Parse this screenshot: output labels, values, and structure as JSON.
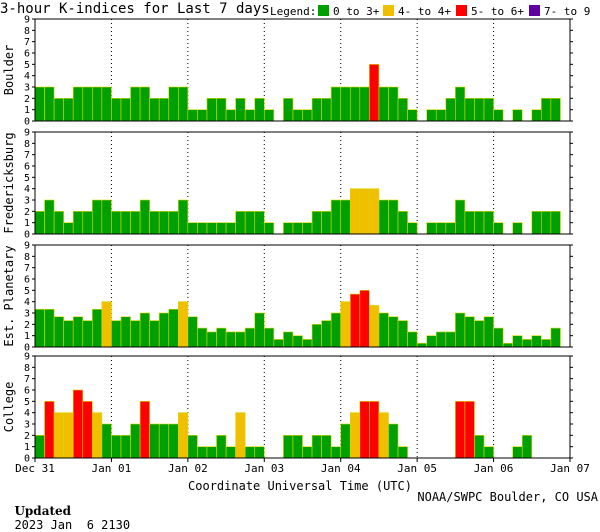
{
  "title": "3-hour K-indices for Last 7 days",
  "legend": {
    "label": "Legend:",
    "items": [
      {
        "label": "0 to 3+",
        "color": "#00a000"
      },
      {
        "label": "4- to 4+",
        "color": "#f0c000"
      },
      {
        "label": "5- to 6+",
        "color": "#ff0000"
      },
      {
        "label": "7- to 9",
        "color": "#6000a0"
      }
    ]
  },
  "footer": {
    "updated_label": "Updated",
    "updated_value": "2023 Jan  6 2130",
    "source": "NOAA/SWPC Boulder, CO USA"
  },
  "chart_data": {
    "type": "bar",
    "xlabel": "Coordinate Universal Time (UTC)",
    "x_ticks": [
      "Dec 31",
      "Jan 01",
      "Jan 02",
      "Jan 03",
      "Jan 04",
      "Jan 05",
      "Jan 06",
      "Jan 07"
    ],
    "y_ticks": [
      "0",
      "1",
      "2",
      "3",
      "4",
      "5",
      "6",
      "7",
      "8",
      "9"
    ],
    "ylim": [
      0,
      9
    ],
    "bins_per_day": 8,
    "grid": true,
    "colors": {
      "quiet": "#00a000",
      "active": "#f0c000",
      "storm": "#ff0000",
      "severe": "#6000a0"
    },
    "panels": [
      {
        "ylabel": "Boulder",
        "values": [
          3,
          3,
          2,
          2,
          3,
          3,
          3,
          3,
          2,
          2,
          3,
          3,
          2,
          2,
          3,
          3,
          1,
          1,
          2,
          2,
          1,
          2,
          1,
          2,
          1,
          0,
          2,
          1,
          1,
          2,
          2,
          3,
          3,
          3,
          3,
          5,
          3,
          3,
          2,
          1,
          0,
          1,
          1,
          2,
          3,
          2,
          2,
          2,
          1,
          0,
          1,
          0,
          1,
          2,
          2,
          0
        ]
      },
      {
        "ylabel": "Fredericksburg",
        "values": [
          2,
          3,
          2,
          1,
          2,
          2,
          3,
          3,
          2,
          2,
          2,
          3,
          2,
          2,
          2,
          3,
          1,
          1,
          1,
          1,
          1,
          2,
          2,
          2,
          1,
          0,
          1,
          1,
          1,
          2,
          2,
          3,
          3,
          4,
          4,
          4,
          3,
          3,
          2,
          1,
          0,
          1,
          1,
          1,
          3,
          2,
          2,
          2,
          1,
          0,
          1,
          0,
          2,
          2,
          2,
          0
        ]
      },
      {
        "ylabel": "Est. Planetary",
        "values": [
          3.33,
          3.33,
          2.67,
          2.33,
          2.67,
          2.33,
          3.33,
          4,
          2.33,
          2.67,
          2.33,
          3,
          2.33,
          3,
          3.33,
          4,
          2.67,
          1.67,
          1.33,
          1.67,
          1.33,
          1.33,
          1.67,
          3,
          1.67,
          0.67,
          1.33,
          1,
          0.67,
          2,
          2.33,
          3,
          4,
          4.67,
          5,
          3.67,
          3,
          2.67,
          2.33,
          1.33,
          0.33,
          1,
          1.33,
          1.33,
          3,
          2.67,
          2.33,
          2.67,
          1.67,
          0.33,
          1,
          0.67,
          1,
          0.67,
          1.67,
          0
        ]
      },
      {
        "ylabel": "College",
        "values": [
          2,
          5,
          4,
          4,
          6,
          5,
          4,
          3,
          2,
          2,
          3,
          5,
          3,
          3,
          3,
          4,
          2,
          1,
          1,
          2,
          1,
          4,
          1,
          1,
          0,
          0,
          2,
          2,
          1,
          2,
          2,
          1,
          3,
          4,
          5,
          5,
          4,
          3,
          1,
          0,
          0,
          0,
          0,
          0,
          5,
          5,
          2,
          1,
          0,
          0,
          1,
          2,
          0,
          0,
          0,
          0
        ]
      }
    ]
  }
}
